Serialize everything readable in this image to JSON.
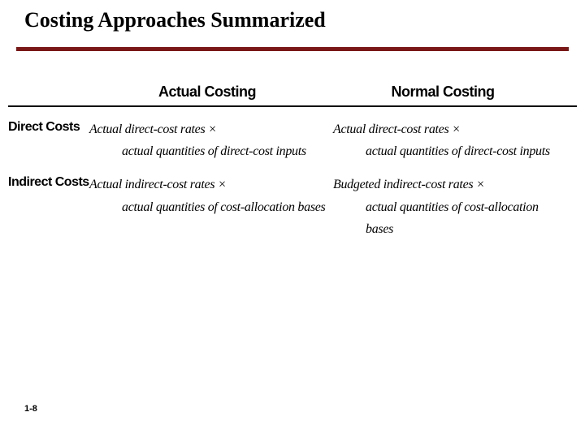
{
  "title": "Costing Approaches Summarized",
  "rule_color": "#7a1818",
  "table": {
    "col_actual": "Actual Costing",
    "col_normal": "Normal Costing",
    "rows": [
      {
        "label": "Direct Costs",
        "actual_l1": "Actual direct-cost rates ×",
        "actual_l2": "actual quantities of direct-cost inputs",
        "normal_l1": "Actual direct-cost rates ×",
        "normal_l2": "actual quantities of direct-cost inputs"
      },
      {
        "label": "Indirect Costs",
        "actual_l1": "Actual indirect-cost rates ×",
        "actual_l2": "actual quantities of cost-allocation bases",
        "normal_l1": "Budgeted indirect-cost rates ×",
        "normal_l2": "actual quantities of cost-allocation bases"
      }
    ]
  },
  "page_number": "1-8"
}
